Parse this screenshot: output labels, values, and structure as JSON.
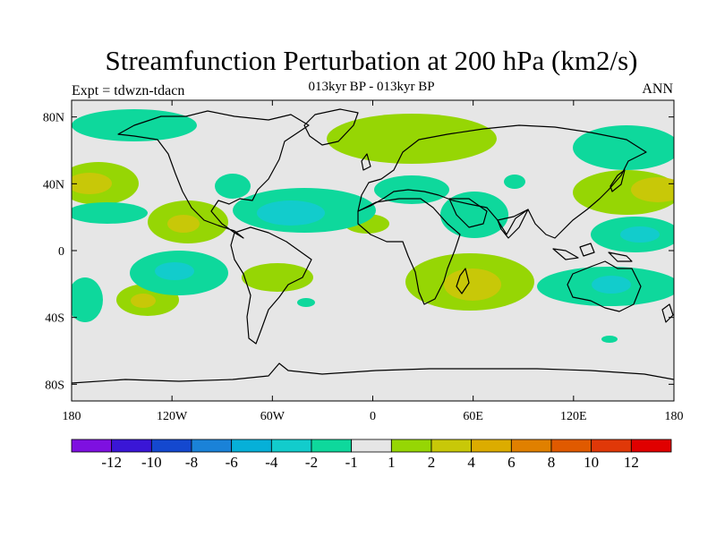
{
  "title": "Streamfunction Perturbation at 200 hPa (km2/s)",
  "subtitle": "013kyr BP - 013kyr BP",
  "experiment": "Expt = tdwzn-tdacn",
  "season": "ANN",
  "map": {
    "lon_range": [
      -180,
      180
    ],
    "lat_range": [
      -90,
      90
    ],
    "lon_ticks": [
      {
        "value": -180,
        "label": "180"
      },
      {
        "value": -120,
        "label": "120W"
      },
      {
        "value": -60,
        "label": "60W"
      },
      {
        "value": 0,
        "label": "0"
      },
      {
        "value": 60,
        "label": "60E"
      },
      {
        "value": 120,
        "label": "120E"
      },
      {
        "value": 180,
        "label": "180"
      }
    ],
    "lat_ticks": [
      {
        "value": 80,
        "label": "80N"
      },
      {
        "value": 40,
        "label": "40N"
      },
      {
        "value": 0,
        "label": "0"
      },
      {
        "value": -40,
        "label": "40S"
      },
      {
        "value": -80,
        "label": "80S"
      }
    ],
    "background_color": "#e6e6e6",
    "coast_color": "#000000"
  },
  "colorbar": {
    "colors": [
      "#7e10e0",
      "#3a16d6",
      "#1448cf",
      "#1a82d8",
      "#06b0d8",
      "#12cccc",
      "#0ed89c",
      "#e6e6e6",
      "#96d604",
      "#c8c808",
      "#dcac00",
      "#e08000",
      "#e05a00",
      "#e03808",
      "#e00000"
    ],
    "labels": [
      "-12",
      "-10",
      "-8",
      "-6",
      "-4",
      "-2",
      "-1",
      "1",
      "2",
      "4",
      "6",
      "8",
      "10",
      "12"
    ]
  }
}
